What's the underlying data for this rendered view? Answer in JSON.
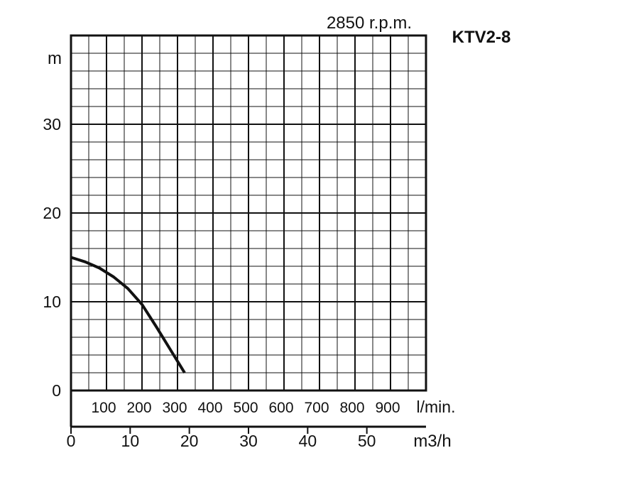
{
  "model": "KTV2-8",
  "speed": "2850 r.p.m.",
  "chart_data": {
    "type": "line",
    "ylabel": "m",
    "ylim": [
      0,
      40
    ],
    "y_ticks": [
      "0",
      "10",
      "20",
      "30"
    ],
    "xlim_flow": [
      0,
      1000
    ],
    "x_ticks_flow": [
      "100",
      "200",
      "300",
      "400",
      "500",
      "600",
      "700",
      "800",
      "900"
    ],
    "xlabel_flow": "l/min.",
    "x_ticks_m3h": [
      "0",
      "10",
      "20",
      "30",
      "40",
      "50"
    ],
    "xlabel_m3h": "m3/h",
    "grid": true,
    "series": [
      {
        "x": [
          0,
          40,
          80,
          120,
          160,
          200,
          240,
          280,
          320
        ],
        "y": [
          15,
          14.5,
          13.8,
          12.8,
          11.5,
          9.7,
          7.2,
          4.6,
          2
        ]
      }
    ]
  }
}
